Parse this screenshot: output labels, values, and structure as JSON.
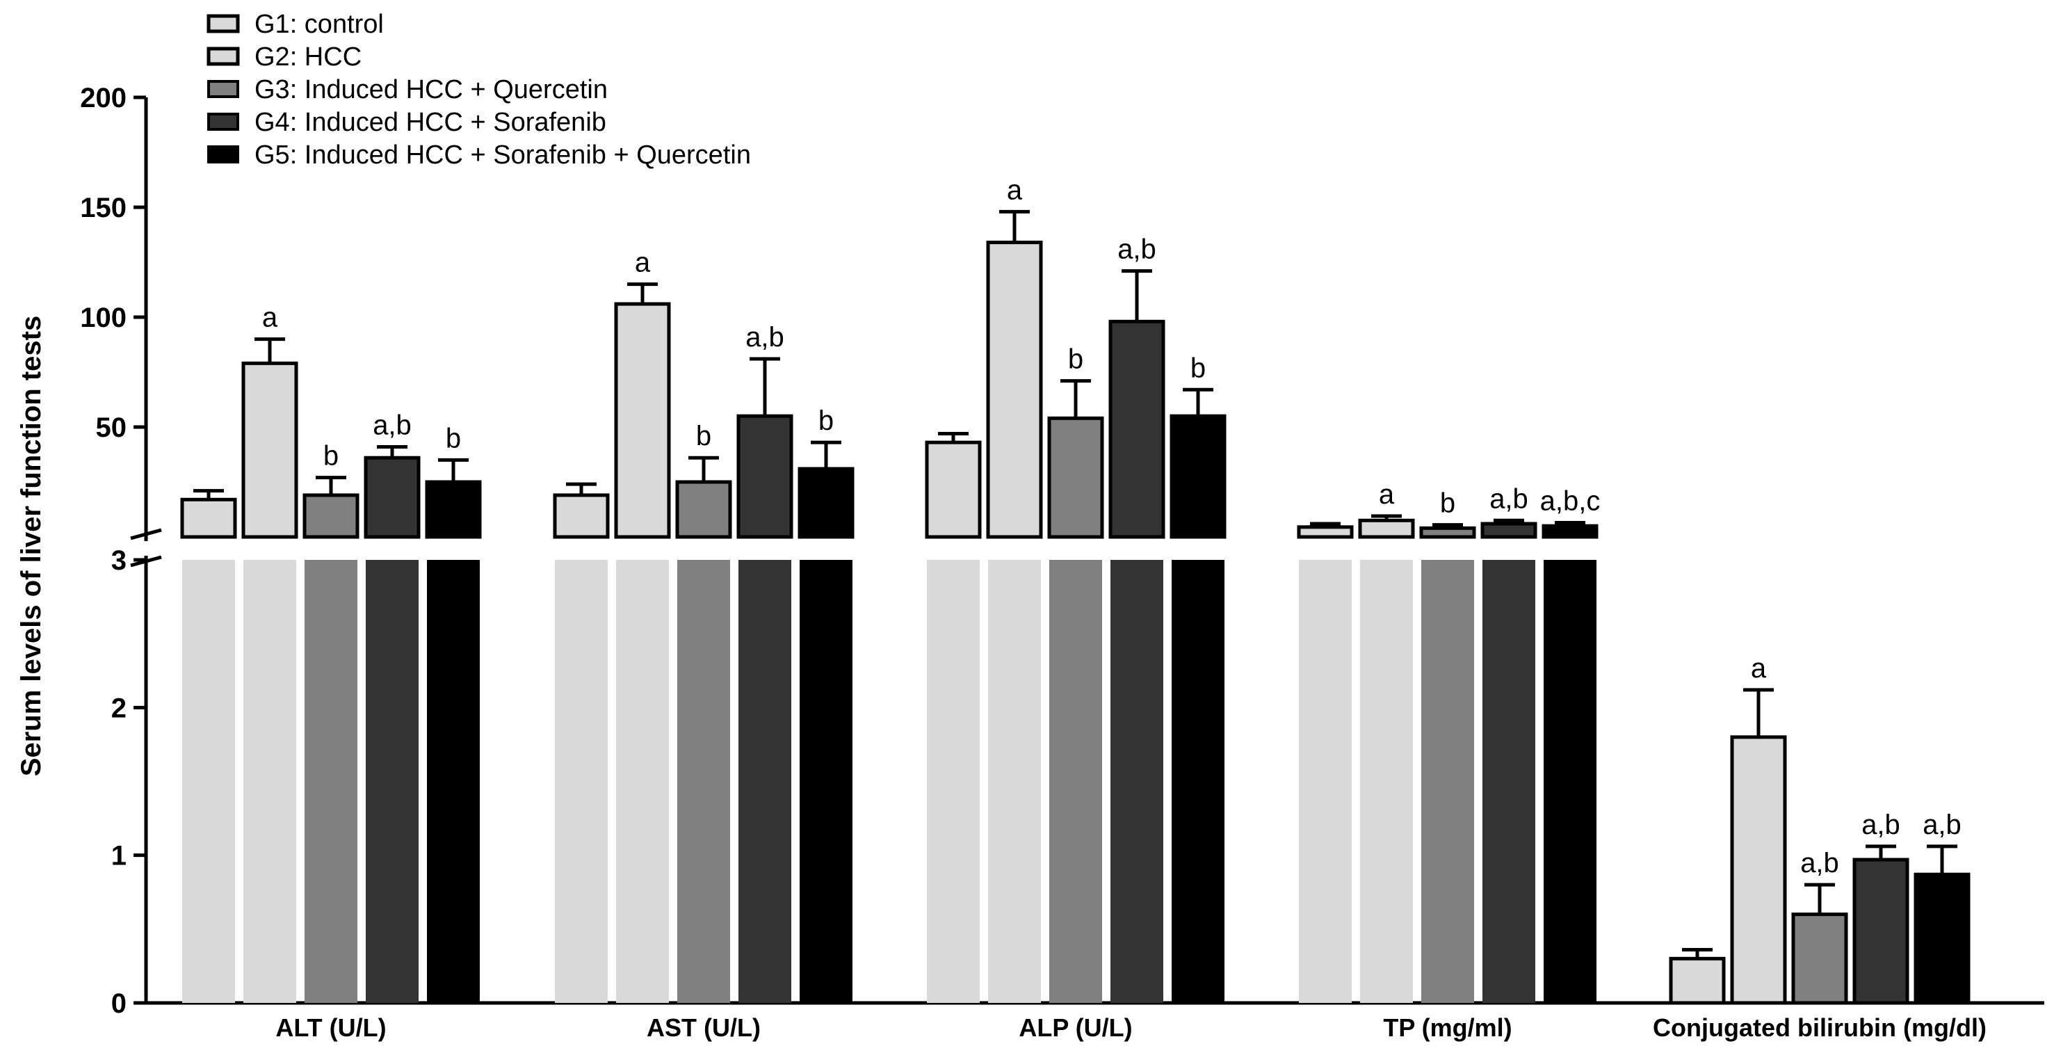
{
  "chart_data": {
    "type": "bar",
    "title": "",
    "xlabel": "",
    "ylabel": "Serum levels of liver function tests",
    "y_axis_broken": true,
    "y_axis_lower_range": [
      0,
      3
    ],
    "y_axis_upper_range": [
      0,
      200
    ],
    "lower_ticks": [
      "0",
      "1",
      "2",
      "3"
    ],
    "upper_ticks": [
      "50",
      "100",
      "150",
      "200"
    ],
    "categories": [
      "ALT (U/L)",
      "AST (U/L)",
      "ALP (U/L)",
      "TP (mg/ml)",
      "Conjugated bilirubin (mg/dl)"
    ],
    "category_scale": [
      "upper",
      "upper",
      "upper",
      "upper",
      "lower"
    ],
    "series": [
      {
        "name": "G1:  control",
        "color": "#d9d9d9",
        "values": [
          17,
          19,
          43,
          4.5,
          0.3
        ],
        "errors": [
          4,
          5,
          4,
          1.5,
          0.06
        ]
      },
      {
        "name": "G2: HCC",
        "color": "#d9d9d9",
        "values": [
          79,
          106,
          134,
          7.5,
          1.8
        ],
        "errors": [
          11,
          9,
          14,
          2,
          0.32
        ]
      },
      {
        "name": "G3: Induced HCC + Quercetin",
        "color": "#808080",
        "values": [
          19,
          25,
          54,
          4,
          0.6
        ],
        "errors": [
          8,
          11,
          17,
          1.5,
          0.2
        ]
      },
      {
        "name": "G4: Induced HCC + Sorafenib",
        "color": "#333333",
        "values": [
          36,
          55,
          98,
          6,
          0.97
        ],
        "errors": [
          5,
          26,
          23,
          1.5,
          0.09
        ]
      },
      {
        "name": "G5: Induced HCC + Sorafenib + Quercetin",
        "color": "#000000",
        "values": [
          25,
          31,
          55,
          5,
          0.87
        ],
        "errors": [
          10,
          12,
          12,
          1.5,
          0.19
        ]
      }
    ],
    "significance": [
      [
        "",
        "a",
        "b",
        "a,b",
        "b"
      ],
      [
        "",
        "a",
        "b",
        "a,b",
        "b"
      ],
      [
        "",
        "a",
        "b",
        "a,b",
        "b"
      ],
      [
        "",
        "a",
        "b",
        "a,b",
        "a,b,c"
      ],
      [
        "",
        "a",
        "a,b",
        "a,b",
        "a,b"
      ]
    ],
    "legend_position": "top-left"
  }
}
